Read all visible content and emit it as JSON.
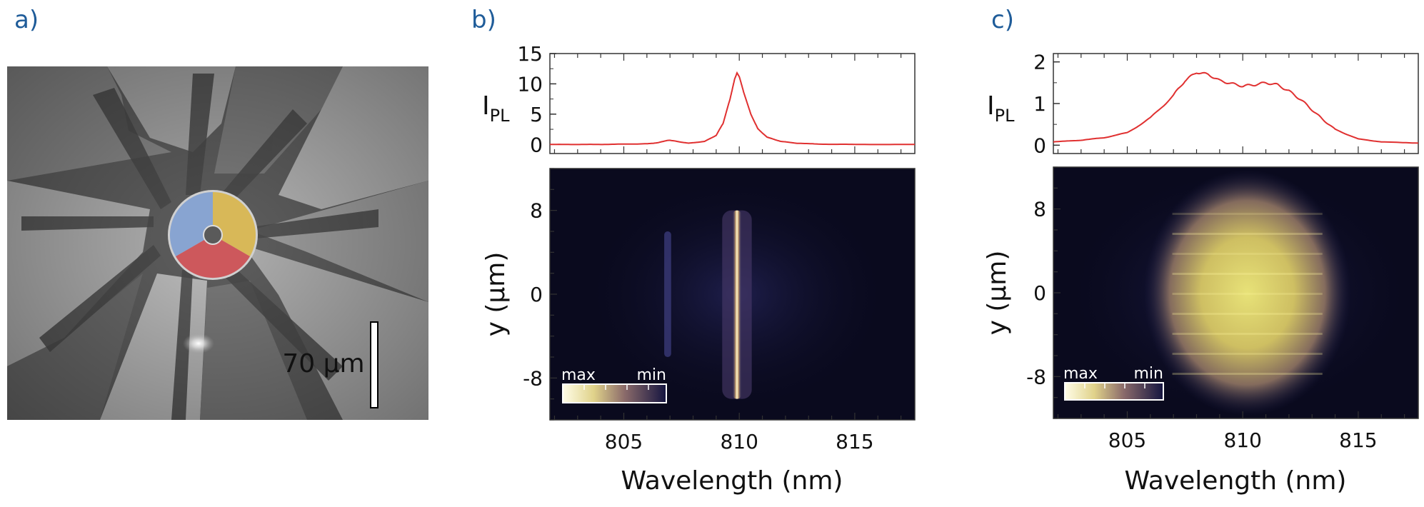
{
  "panels": {
    "a": {
      "label": "a)",
      "scale_bar": {
        "text": "70 μm"
      },
      "sector_colors": {
        "blue": "#7f9fd0",
        "yellow": "#d8b54a",
        "red": "#cc4a4f"
      }
    },
    "b": {
      "label": "b)"
    },
    "c": {
      "label": "c)"
    }
  },
  "colorbar": {
    "max_label": "max",
    "min_label": "min"
  },
  "chart_data": [
    {
      "panel": "b",
      "type": "line",
      "description_role": "PL spectrum (top)",
      "ylabel": "I",
      "ylabel_sub": "PL",
      "ylim": [
        -1.5,
        15
      ],
      "yticks": [
        0,
        5,
        10,
        15
      ],
      "xlim": [
        801.8,
        817.6
      ],
      "line_color": "#e03030",
      "x": [
        801.8,
        803,
        804,
        805,
        806,
        806.5,
        806.8,
        807,
        807.3,
        807.8,
        808.5,
        809,
        809.3,
        809.6,
        809.8,
        809.9,
        810,
        810.2,
        810.5,
        810.8,
        811.2,
        811.8,
        812.5,
        813.5,
        815,
        817.6
      ],
      "y": [
        0,
        0,
        0,
        0.05,
        0.1,
        0.3,
        0.6,
        0.7,
        0.5,
        0.2,
        0.5,
        1.5,
        3.5,
        7.5,
        10.8,
        11.8,
        11.2,
        8.5,
        5.0,
        2.6,
        1.2,
        0.5,
        0.2,
        0.05,
        0,
        0
      ]
    },
    {
      "panel": "b",
      "type": "heatmap",
      "description_role": "spatially resolved PL (bottom)",
      "xlabel": "Wavelength (nm)",
      "ylabel": "y (μm)",
      "xlim": [
        801.8,
        817.6
      ],
      "ylim": [
        -12,
        12
      ],
      "xticks": [
        805,
        810,
        815
      ],
      "yticks": [
        -8,
        0,
        8
      ],
      "features": [
        {
          "center_wavelength": 809.9,
          "width_nm": 0.4,
          "y_range": [
            -10,
            8
          ],
          "intensity": 1.0
        },
        {
          "center_wavelength": 806.9,
          "width_nm": 0.3,
          "y_range": [
            -6,
            6
          ],
          "intensity": 0.2
        }
      ]
    },
    {
      "panel": "c",
      "type": "line",
      "description_role": "PL spectrum (top)",
      "ylabel": "I",
      "ylabel_sub": "PL",
      "ylim": [
        -0.2,
        2.2
      ],
      "yticks": [
        0,
        1,
        2
      ],
      "xlim": [
        801.8,
        817.6
      ],
      "line_color": "#e03030",
      "x": [
        801.8,
        803,
        804,
        805,
        806,
        807,
        807.5,
        808,
        808.5,
        809,
        809.5,
        810,
        810.5,
        811,
        811.5,
        812,
        812.5,
        813,
        813.5,
        814,
        815,
        816,
        817.6
      ],
      "y": [
        0.08,
        0.12,
        0.18,
        0.3,
        0.65,
        1.2,
        1.55,
        1.75,
        1.7,
        1.55,
        1.48,
        1.42,
        1.45,
        1.5,
        1.45,
        1.3,
        1.1,
        0.85,
        0.6,
        0.38,
        0.15,
        0.08,
        0.05
      ]
    },
    {
      "panel": "c",
      "type": "heatmap",
      "description_role": "spatially resolved PL (bottom)",
      "xlabel": "Wavelength (nm)",
      "ylabel": "y (μm)",
      "xlim": [
        801.8,
        817.6
      ],
      "ylim": [
        -12,
        12
      ],
      "xticks": [
        805,
        810,
        815
      ],
      "yticks": [
        -8,
        0,
        8
      ],
      "features": [
        {
          "center_wavelength": 810.2,
          "width_nm": 6.5,
          "y_range": [
            -9,
            9
          ],
          "intensity": 0.9
        }
      ]
    }
  ]
}
